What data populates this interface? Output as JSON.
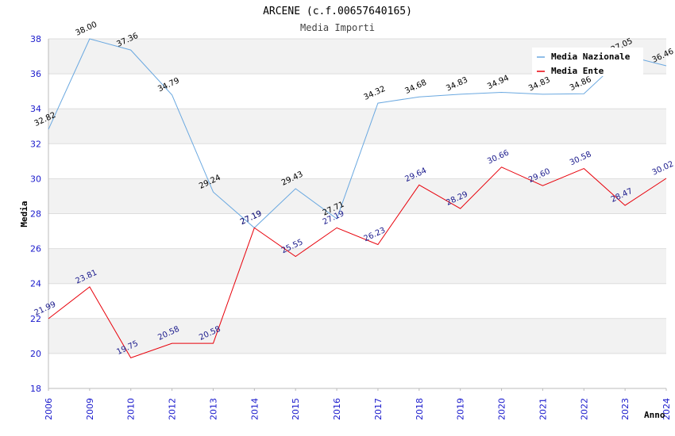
{
  "chart_data": {
    "type": "line",
    "title": "ARCENE (c.f.00657640165)",
    "subtitle": "Media Importi",
    "xlabel": "Anno",
    "ylabel": "Media",
    "ylim": [
      18,
      38
    ],
    "yticks": [
      "18",
      "20",
      "22",
      "24",
      "26",
      "28",
      "30",
      "32",
      "34",
      "36",
      "38"
    ],
    "categories": [
      "2006",
      "2009",
      "2010",
      "2012",
      "2013",
      "2014",
      "2015",
      "2016",
      "2017",
      "2018",
      "2019",
      "2020",
      "2021",
      "2022",
      "2023",
      "2024"
    ],
    "grid": true,
    "legend_position": "top-right",
    "series": [
      {
        "name": "Media Nazionale",
        "color": "#6aa8e0",
        "label_color": "#000000",
        "values": [
          32.82,
          38.0,
          37.36,
          34.79,
          29.24,
          27.19,
          29.43,
          27.71,
          34.32,
          34.68,
          34.83,
          34.94,
          34.83,
          34.86,
          37.05,
          36.46
        ],
        "labels": [
          "32.82",
          "38.00",
          "37.36",
          "34.79",
          "29.24",
          "27.19",
          "29.43",
          "27.71",
          "34.32",
          "34.68",
          "34.83",
          "34.94",
          "34.83",
          "34.86",
          "37.05",
          "36.46"
        ]
      },
      {
        "name": "Media Ente",
        "color": "#e8000a",
        "label_color": "#1a1a8c",
        "values": [
          21.99,
          23.81,
          19.75,
          20.58,
          20.58,
          27.19,
          25.55,
          27.19,
          26.23,
          29.64,
          28.29,
          30.66,
          29.6,
          30.58,
          28.47,
          30.02
        ],
        "labels": [
          "21.99",
          "23.81",
          "19.75",
          "20.58",
          "20.58",
          "27.19",
          "25.55",
          "27.19",
          "26.23",
          "29.64",
          "28.29",
          "30.66",
          "29.60",
          "30.58",
          "28.47",
          "30.02"
        ]
      }
    ]
  },
  "colors": {
    "tick_text": "#1a1acc",
    "band": "#f2f2f2",
    "grid": "#dddddd"
  }
}
